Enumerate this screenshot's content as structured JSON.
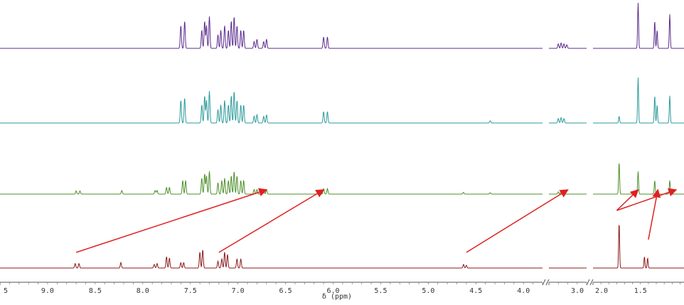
{
  "chart_data": {
    "type": "line",
    "title": "",
    "xlabel": "δ (ppm)",
    "ylabel": "",
    "x_reversed": true,
    "axis_breaks": [
      [
        3.8,
        3.3
      ],
      [
        2.9,
        2.1
      ]
    ],
    "xticks": [
      {
        "label": "5"
      },
      {
        "label": "9.0",
        "v": 9.0
      },
      {
        "label": "8.5",
        "v": 8.5
      },
      {
        "label": "8.0",
        "v": 8.0
      },
      {
        "label": "7.5",
        "v": 7.5
      },
      {
        "label": "7.0",
        "v": 7.0
      },
      {
        "label": "6.5",
        "v": 6.5
      },
      {
        "label": "6.0",
        "v": 6.0
      },
      {
        "label": "5.5",
        "v": 5.5
      },
      {
        "label": "5.0",
        "v": 5.0
      },
      {
        "label": "4.5",
        "v": 4.5
      },
      {
        "label": "4.0",
        "v": 4.0
      },
      {
        "label": "3.0",
        "v": 3.0
      },
      {
        "label": "2.0",
        "v": 2.0
      },
      {
        "label": "1.5",
        "v": 1.5
      }
    ],
    "series": [
      {
        "color": "#5b2c8e",
        "peaks": [
          [
            7.6,
            0.5
          ],
          [
            7.56,
            0.6
          ],
          [
            7.38,
            0.4
          ],
          [
            7.35,
            0.6
          ],
          [
            7.33,
            0.5
          ],
          [
            7.3,
            0.7
          ],
          [
            7.21,
            0.3
          ],
          [
            7.18,
            0.4
          ],
          [
            7.14,
            0.5
          ],
          [
            7.1,
            0.4
          ],
          [
            7.07,
            0.6
          ],
          [
            7.04,
            0.7
          ],
          [
            7.01,
            0.5
          ],
          [
            6.97,
            0.4
          ],
          [
            6.94,
            0.4
          ],
          [
            6.83,
            0.15
          ],
          [
            6.8,
            0.2
          ],
          [
            6.73,
            0.15
          ],
          [
            6.7,
            0.2
          ],
          [
            6.1,
            0.25
          ],
          [
            6.06,
            0.25
          ],
          [
            3.2,
            0.1
          ],
          [
            3.17,
            0.12
          ],
          [
            3.14,
            0.1
          ],
          [
            3.11,
            0.08
          ],
          [
            1.53,
            1.0
          ],
          [
            1.32,
            0.6
          ],
          [
            1.29,
            0.4
          ],
          [
            1.13,
            0.75
          ]
        ]
      },
      {
        "color": "#2e9a9a",
        "peaks": [
          [
            7.6,
            0.5
          ],
          [
            7.56,
            0.55
          ],
          [
            7.38,
            0.4
          ],
          [
            7.35,
            0.6
          ],
          [
            7.33,
            0.5
          ],
          [
            7.3,
            0.7
          ],
          [
            7.21,
            0.3
          ],
          [
            7.18,
            0.4
          ],
          [
            7.14,
            0.5
          ],
          [
            7.1,
            0.4
          ],
          [
            7.07,
            0.6
          ],
          [
            7.04,
            0.7
          ],
          [
            7.01,
            0.5
          ],
          [
            6.97,
            0.4
          ],
          [
            6.94,
            0.4
          ],
          [
            6.83,
            0.15
          ],
          [
            6.8,
            0.18
          ],
          [
            6.73,
            0.15
          ],
          [
            6.7,
            0.18
          ],
          [
            6.1,
            0.25
          ],
          [
            6.06,
            0.25
          ],
          [
            4.35,
            0.05
          ],
          [
            3.2,
            0.1
          ],
          [
            3.17,
            0.12
          ],
          [
            3.14,
            0.1
          ],
          [
            1.77,
            0.15
          ],
          [
            1.53,
            1.0
          ],
          [
            1.32,
            0.6
          ],
          [
            1.29,
            0.4
          ],
          [
            1.13,
            0.6
          ]
        ]
      },
      {
        "color": "#4d8f2a",
        "peaks": [
          [
            8.7,
            0.07
          ],
          [
            8.66,
            0.07
          ],
          [
            8.22,
            0.08
          ],
          [
            7.87,
            0.08
          ],
          [
            7.85,
            0.08
          ],
          [
            7.75,
            0.15
          ],
          [
            7.72,
            0.15
          ],
          [
            7.58,
            0.3
          ],
          [
            7.55,
            0.3
          ],
          [
            7.38,
            0.35
          ],
          [
            7.35,
            0.45
          ],
          [
            7.33,
            0.4
          ],
          [
            7.3,
            0.5
          ],
          [
            7.21,
            0.25
          ],
          [
            7.17,
            0.3
          ],
          [
            7.14,
            0.35
          ],
          [
            7.1,
            0.3
          ],
          [
            7.07,
            0.4
          ],
          [
            7.04,
            0.5
          ],
          [
            7.01,
            0.4
          ],
          [
            6.97,
            0.3
          ],
          [
            6.94,
            0.3
          ],
          [
            6.83,
            0.1
          ],
          [
            6.8,
            0.1
          ],
          [
            6.73,
            0.1
          ],
          [
            6.7,
            0.1
          ],
          [
            6.1,
            0.12
          ],
          [
            6.06,
            0.12
          ],
          [
            4.63,
            0.04
          ],
          [
            4.35,
            0.03
          ],
          [
            3.2,
            0.05
          ],
          [
            3.17,
            0.06
          ],
          [
            1.77,
            0.7
          ],
          [
            1.53,
            0.5
          ],
          [
            1.32,
            0.3
          ],
          [
            1.13,
            0.3
          ]
        ]
      },
      {
        "color": "#8b1a1a",
        "peaks": [
          [
            8.71,
            0.1
          ],
          [
            8.67,
            0.1
          ],
          [
            8.23,
            0.12
          ],
          [
            7.88,
            0.08
          ],
          [
            7.85,
            0.1
          ],
          [
            7.75,
            0.25
          ],
          [
            7.72,
            0.22
          ],
          [
            7.6,
            0.12
          ],
          [
            7.57,
            0.12
          ],
          [
            7.4,
            0.35
          ],
          [
            7.37,
            0.4
          ],
          [
            7.21,
            0.15
          ],
          [
            7.17,
            0.2
          ],
          [
            7.14,
            0.35
          ],
          [
            7.11,
            0.3
          ],
          [
            7.01,
            0.2
          ],
          [
            6.97,
            0.2
          ],
          [
            4.63,
            0.08
          ],
          [
            4.6,
            0.06
          ],
          [
            1.77,
            1.0
          ],
          [
            1.45,
            0.25
          ],
          [
            1.41,
            0.22
          ]
        ]
      }
    ],
    "arrows": [
      {
        "from_series": 3,
        "from": 8.7,
        "to_series": 2,
        "to": 6.7
      },
      {
        "from_series": 3,
        "from": 7.2,
        "to_series": 2,
        "to": 6.1
      },
      {
        "from_series": 3,
        "from": 4.6,
        "to_series": 2,
        "to": 3.1
      },
      {
        "from_series": 3,
        "from": 1.8,
        "to_series": 2,
        "to": 1.53
      },
      {
        "from_series": 3,
        "from": 1.8,
        "to_series": 2,
        "to": 1.05
      },
      {
        "from_series": 3,
        "from": 1.4,
        "to_series": 2,
        "to": 1.28
      }
    ],
    "arrow_color": "#e02020",
    "grid": false,
    "legend": "none"
  }
}
